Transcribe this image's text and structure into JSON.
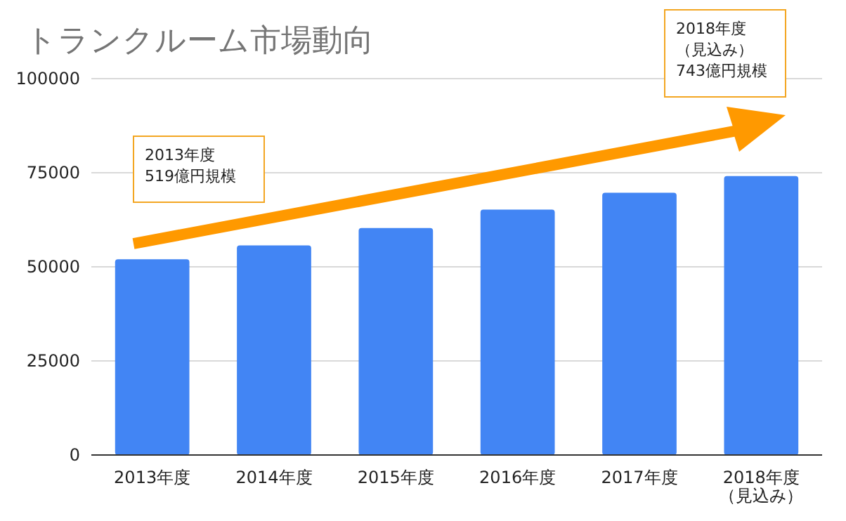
{
  "chart_data": {
    "type": "bar",
    "title": "トランクルーム市場動向",
    "categories": [
      "2013年度",
      "2014年度",
      "2015年度",
      "2016年度",
      "2017年度",
      "2018年度（見込み）"
    ],
    "values": [
      52000,
      55700,
      60300,
      65200,
      69700,
      74100
    ],
    "color": "#4285f4",
    "ylim": [
      0,
      100000
    ],
    "yticks": [
      0,
      25000,
      50000,
      75000,
      100000
    ],
    "grid": "y",
    "annotations": [
      "2013年度519億円規模",
      "2018年度（見込み）743億円規模"
    ]
  }
}
